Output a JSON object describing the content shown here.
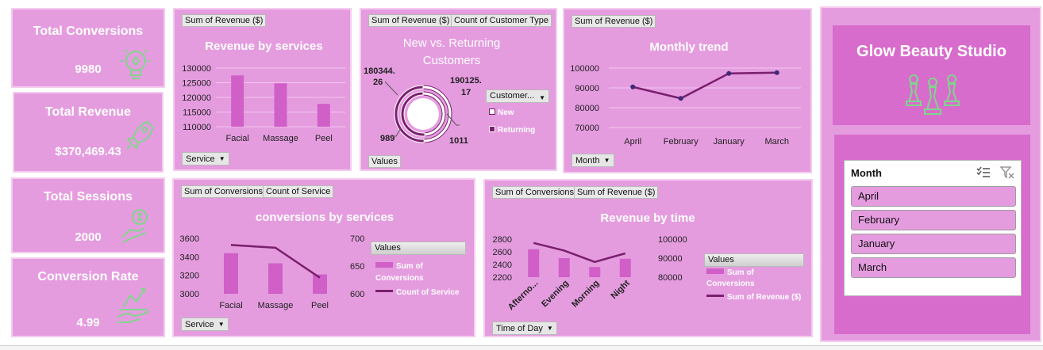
{
  "kpis": [
    {
      "title": "Total Conversions",
      "value": "9980",
      "icon": "lightbulb-icon"
    },
    {
      "title": "Total Revenue",
      "value": "$370,469.43",
      "icon": "rocket-icon"
    },
    {
      "title": "Total Sessions",
      "value": "2000",
      "icon": "money-hand-icon"
    },
    {
      "title": "Conversion Rate",
      "value": "4.99",
      "icon": "growth-icon"
    }
  ],
  "revenue_services": {
    "field_button": "Sum of Revenue ($)",
    "title": "Revenue by services",
    "axis_button": "Service",
    "chart_data": {
      "type": "bar",
      "categories": [
        "Facial",
        "Massage",
        "Peel"
      ],
      "values": [
        127500,
        124800,
        117800
      ],
      "title": "Revenue by services",
      "ylim": [
        110000,
        130000
      ],
      "yticks": [
        "130000",
        "125000",
        "120000",
        "115000",
        "110000"
      ]
    }
  },
  "customers": {
    "field_buttons": [
      "Sum of Revenue ($)",
      "Count of Customer Type"
    ],
    "title_line1": "New vs. Returning",
    "title_line2": "Customers",
    "label_top_left_1": "180344.",
    "label_top_left_2": "26",
    "label_top_right_1": "190125.",
    "label_top_right_2": "17",
    "label_bottom_left": "989",
    "label_bottom_right": "1011",
    "legend_dropdown": "Customer...",
    "legend_items": [
      "New",
      "Returning"
    ],
    "values_button": "Values",
    "chart_data": {
      "type": "pie",
      "series": [
        {
          "name": "Sum of Revenue ($)",
          "values": [
            180344.26,
            190125.17
          ]
        },
        {
          "name": "Count of Customer Type",
          "values": [
            989,
            1011
          ]
        }
      ],
      "categories": [
        "New",
        "Returning"
      ]
    }
  },
  "monthly": {
    "field_button": "Sum of Revenue ($)",
    "title": "Monthly trend",
    "axis_button": "Month",
    "chart_data": {
      "type": "line",
      "categories": [
        "April",
        "February",
        "January",
        "March"
      ],
      "values": [
        90500,
        84700,
        97300,
        97700
      ],
      "title": "Monthly trend",
      "ylim": [
        70000,
        100000
      ],
      "yticks": [
        "100000",
        "90000",
        "80000",
        "70000"
      ]
    }
  },
  "conversions_services": {
    "field_buttons": [
      "Sum of Conversions",
      "Count of Service"
    ],
    "title": "conversions by services",
    "axis_button": "Service",
    "legend_title": "Values",
    "legend_items": [
      "Sum of Conversions",
      "Count of Service"
    ],
    "chart_data": {
      "type": "bar",
      "categories": [
        "Facial",
        "Massage",
        "Peel"
      ],
      "series": [
        {
          "name": "Sum of Conversions",
          "values": [
            3440,
            3330,
            3210
          ]
        },
        {
          "name": "Count of Service",
          "values": [
            688,
            683,
            629
          ]
        }
      ],
      "ylim": [
        3000,
        3600
      ],
      "y2lim": [
        600,
        700
      ],
      "yticks": [
        "3600",
        "3400",
        "3200",
        "3000"
      ],
      "y2ticks": [
        "700",
        "650",
        "600"
      ]
    }
  },
  "revenue_time": {
    "field_buttons": [
      "Sum of Conversions",
      "Sum of Revenue ($)"
    ],
    "title": "Revenue by time",
    "axis_button": "Time of Day",
    "legend_title": "Values",
    "legend_items": [
      "Sum of Conversions",
      "Sum of Revenue ($)"
    ],
    "chart_data": {
      "type": "bar",
      "categories": [
        "Afterno...",
        "Evening",
        "Morning",
        "Night"
      ],
      "series": [
        {
          "name": "Sum of Conversions",
          "values": [
            2640,
            2500,
            2360,
            2490
          ]
        },
        {
          "name": "Sum of Revenue ($)",
          "values": [
            98000,
            94000,
            88000,
            92500
          ]
        }
      ],
      "ylim": [
        2200,
        2800
      ],
      "y2lim": [
        80000,
        100000
      ],
      "yticks": [
        "2800",
        "2600",
        "2400",
        "2200"
      ],
      "y2ticks": [
        "100000",
        "90000",
        "80000"
      ]
    }
  },
  "brand": {
    "title": "Glow Beauty Studio",
    "icon": "chess-pieces-icon"
  },
  "slicer": {
    "title": "Month",
    "items": [
      "April",
      "February",
      "January",
      "March"
    ]
  },
  "colors": {
    "panel": "#e59cdf",
    "bar": "#d05fc8",
    "line": "#7a1f6e",
    "brand": "#d86ccd",
    "icon": "#7fd68a"
  }
}
